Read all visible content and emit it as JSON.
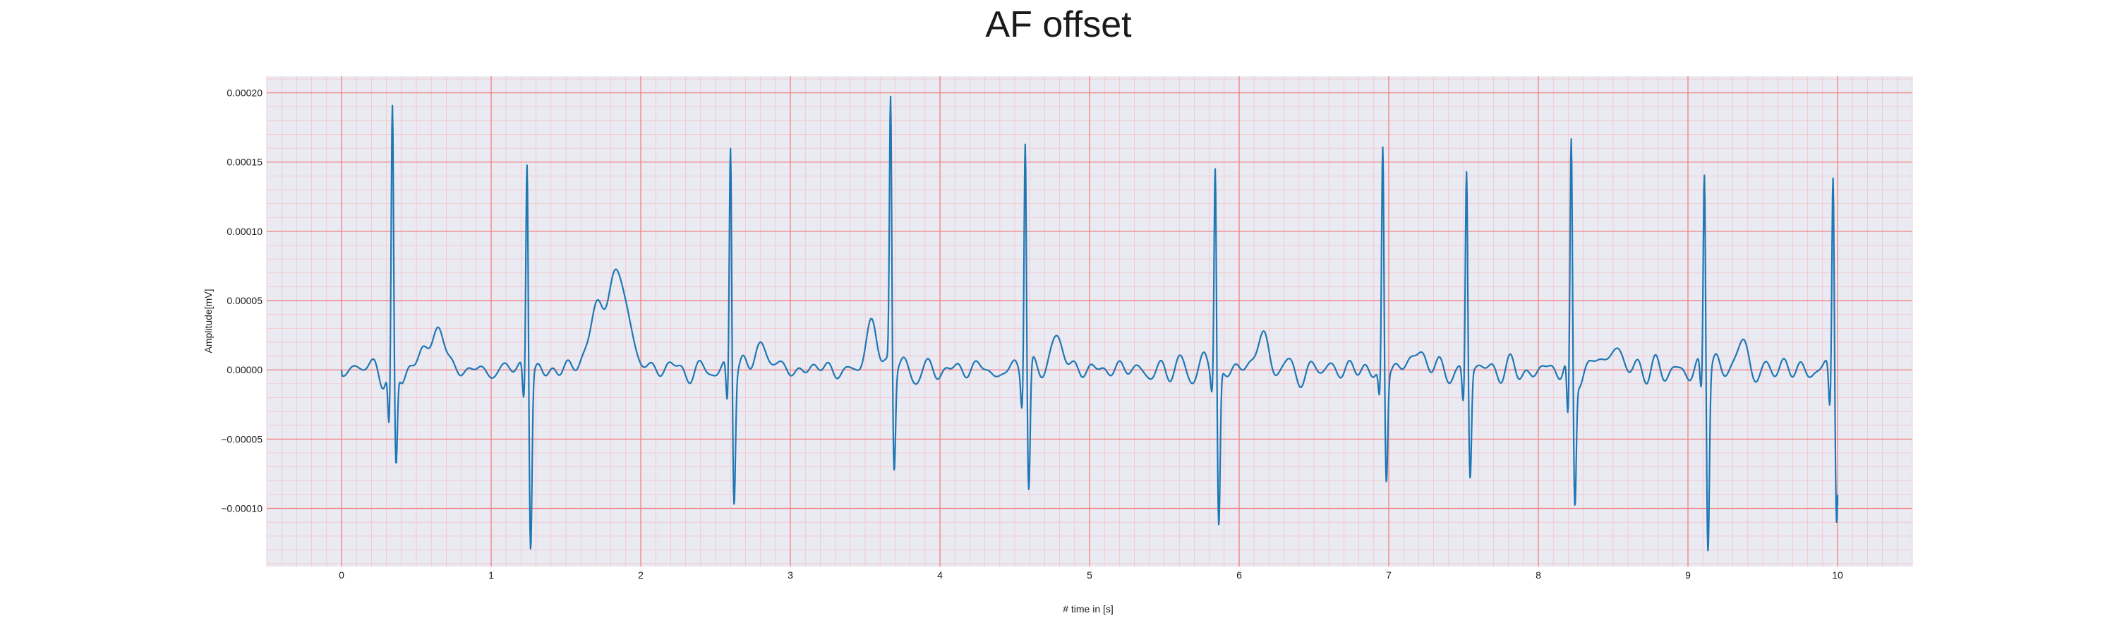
{
  "chart_data": {
    "type": "line",
    "title": "AF offset",
    "xlabel": "# time in [s]",
    "ylabel": "Amplitude[mV]",
    "xlim": [
      -0.5,
      10.5
    ],
    "ylim": [
      -0.000142,
      0.000212
    ],
    "x_ticks": [
      0,
      1,
      2,
      3,
      4,
      5,
      6,
      7,
      8,
      9,
      10
    ],
    "x_tick_labels": [
      "0",
      "1",
      "2",
      "3",
      "4",
      "5",
      "6",
      "7",
      "8",
      "9",
      "10"
    ],
    "y_ticks": [
      -0.0001,
      -5e-05,
      0,
      5e-05,
      0.0001,
      0.00015,
      0.0002
    ],
    "y_tick_labels": [
      "−0.00010",
      "−0.00005",
      "0.00000",
      "0.00005",
      "0.00010",
      "0.00015",
      "0.00020"
    ],
    "grid": true,
    "grid_style": "ecg paper: major red lines, minor pink lines",
    "background_color": "#eaeaf2",
    "major_grid_color": "#f08080",
    "minor_grid_color": "#f4c4c8",
    "line_color": "#1f77b4",
    "beats": [
      {
        "t": 0.34,
        "r": 0.00018,
        "q": -4.5e-05,
        "s": -7.5e-05
      },
      {
        "t": 1.24,
        "r": 0.000155,
        "q": -2.5e-05,
        "s": -0.000125
      },
      {
        "t": 2.6,
        "r": 0.000166,
        "q": -2.8e-05,
        "s": -9e-05
      },
      {
        "t": 3.67,
        "r": 0.000195,
        "q": 0.0,
        "s": -7.3e-05
      },
      {
        "t": 4.57,
        "r": 0.000174,
        "q": -2.2e-05,
        "s": -8.9e-05
      },
      {
        "t": 5.84,
        "r": 0.000155,
        "q": -1.2e-05,
        "s": -0.000111
      },
      {
        "t": 6.96,
        "r": 0.000164,
        "q": -2e-05,
        "s": -7.8e-05
      },
      {
        "t": 7.52,
        "r": 0.000147,
        "q": -2.5e-05,
        "s": -7.7e-05
      },
      {
        "t": 8.22,
        "r": 0.00016,
        "q": -4.5e-05,
        "s": -9.6e-05
      },
      {
        "t": 9.11,
        "r": 0.000148,
        "q": -2e-05,
        "s": -0.000125
      },
      {
        "t": 9.97,
        "r": 0.00015,
        "q": -3e-05,
        "s": -9.8e-05
      }
    ],
    "t_waves": [
      {
        "t": 0.62,
        "a": 2.5e-05,
        "w": 0.07
      },
      {
        "t": 1.78,
        "a": 5e-05,
        "w": 0.1
      },
      {
        "t": 1.87,
        "a": 3e-05,
        "w": 0.06
      },
      {
        "t": 2.82,
        "a": 1.8e-05,
        "w": 0.05
      },
      {
        "t": 3.55,
        "a": 2.8e-05,
        "w": 0.05
      },
      {
        "t": 4.8,
        "a": 2e-05,
        "w": 0.05
      },
      {
        "t": 6.15,
        "a": 2e-05,
        "w": 0.05
      },
      {
        "t": 7.2,
        "a": 1.2e-05,
        "w": 0.05
      },
      {
        "t": 8.48,
        "a": 1.8e-05,
        "w": 0.05
      },
      {
        "t": 9.35,
        "a": 1.5e-05,
        "w": 0.05
      }
    ],
    "baseline_noise_amplitude": 1.2e-05,
    "trailing_value": -9.8e-05
  }
}
